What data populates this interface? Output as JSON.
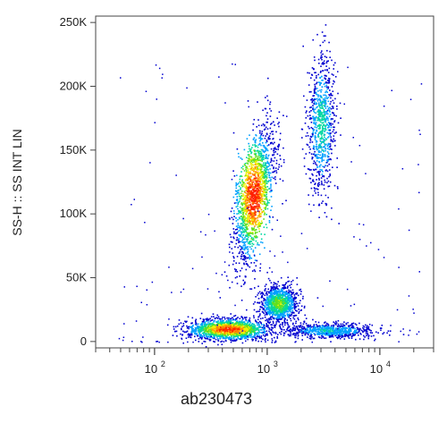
{
  "chart_data": {
    "type": "scatter",
    "subtype": "flow-cytometry-density-dot-plot",
    "xlabel": "ab230473",
    "ylabel": "SS-H :: SS INT LIN",
    "x_scale": "log",
    "y_scale": "linear",
    "xlim": [
      30,
      30000
    ],
    "ylim": [
      -5000,
      255000
    ],
    "y_ticks": [
      {
        "value": 0,
        "label": "0"
      },
      {
        "value": 50000,
        "label": "50K"
      },
      {
        "value": 100000,
        "label": "100K"
      },
      {
        "value": 150000,
        "label": "150K"
      },
      {
        "value": 200000,
        "label": "200K"
      },
      {
        "value": 250000,
        "label": "250K"
      }
    ],
    "x_ticks": [
      {
        "value": 100,
        "base": "10",
        "exp": "2"
      },
      {
        "value": 1000,
        "base": "10",
        "exp": "3"
      },
      {
        "value": 10000,
        "base": "10",
        "exp": "4"
      }
    ],
    "color_scale": [
      "#0000d0",
      "#00a0ff",
      "#00d8a0",
      "#60e020",
      "#f0f000",
      "#ff9000",
      "#ff2000"
    ],
    "populations": [
      {
        "x_center": 750,
        "x_spread_decades": 0.09,
        "y_center": 115000,
        "y_spread": 26000,
        "correlation": 0.55,
        "peak_density": 1.0
      },
      {
        "x_center": 3000,
        "x_spread_decades": 0.06,
        "y_center": 170000,
        "y_spread": 28000,
        "correlation": 0.1,
        "peak_density": 0.35
      },
      {
        "x_center": 450,
        "x_spread_decades": 0.18,
        "y_center": 10000,
        "y_spread": 4000,
        "correlation": 0.0,
        "peak_density": 0.95
      },
      {
        "x_center": 1250,
        "x_spread_decades": 0.08,
        "y_center": 30000,
        "y_spread": 7000,
        "correlation": 0.0,
        "peak_density": 0.55
      },
      {
        "x_center": 3500,
        "x_spread_decades": 0.2,
        "y_center": 9000,
        "y_spread": 3000,
        "correlation": 0.0,
        "peak_density": 0.3
      }
    ]
  }
}
